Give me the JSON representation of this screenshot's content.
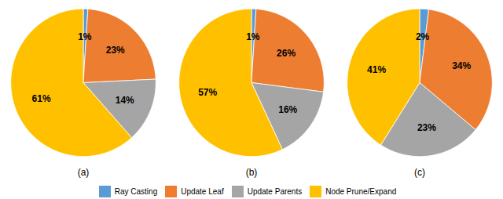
{
  "chart_data": [
    {
      "type": "pie",
      "title": "(a)",
      "categories": [
        "Ray Casting",
        "Update Leaf",
        "Update Parents",
        "Node Prune/Expand"
      ],
      "values": [
        1,
        23,
        14,
        61
      ],
      "value_labels": [
        "1%",
        "23%",
        "14%",
        "61%"
      ],
      "colors": [
        "#5b9bd5",
        "#ed7d31",
        "#a5a5a5",
        "#ffc000"
      ],
      "data_labels": true,
      "legend": "bottom"
    },
    {
      "type": "pie",
      "title": "(b)",
      "categories": [
        "Ray Casting",
        "Update Leaf",
        "Update Parents",
        "Node Prune/Expand"
      ],
      "values": [
        1,
        26,
        16,
        57
      ],
      "value_labels": [
        "1%",
        "26%",
        "16%",
        "57%"
      ],
      "colors": [
        "#5b9bd5",
        "#ed7d31",
        "#a5a5a5",
        "#ffc000"
      ],
      "data_labels": true,
      "legend": "bottom"
    },
    {
      "type": "pie",
      "title": "(c)",
      "categories": [
        "Ray Casting",
        "Update Leaf",
        "Update Parents",
        "Node Prune/Expand"
      ],
      "values": [
        2,
        34,
        23,
        41
      ],
      "value_labels": [
        "2%",
        "34%",
        "23%",
        "41%"
      ],
      "colors": [
        "#5b9bd5",
        "#ed7d31",
        "#a5a5a5",
        "#ffc000"
      ],
      "data_labels": true,
      "legend": "bottom"
    }
  ]
}
